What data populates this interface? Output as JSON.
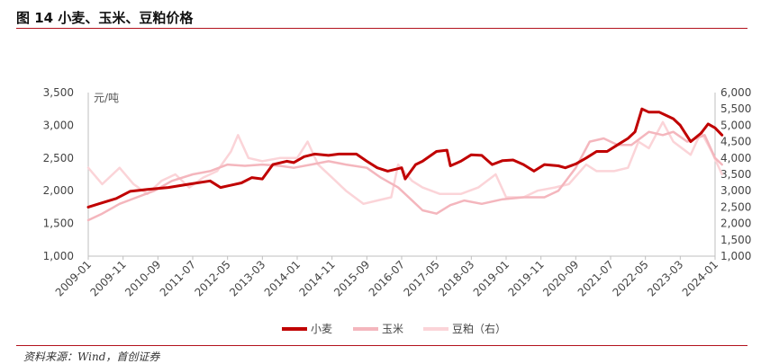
{
  "figure": {
    "title": "图 14  小麦、玉米、豆粕价格",
    "source": "资料来源：Wind，首创证券"
  },
  "chart_data": {
    "type": "line",
    "unit_label": "元/吨",
    "x_ticks": [
      "2009-01",
      "2009-11",
      "2010-09",
      "2011-07",
      "2012-05",
      "2013-03",
      "2014-01",
      "2014-11",
      "2015-09",
      "2016-07",
      "2017-05",
      "2018-03",
      "2019-01",
      "2019-11",
      "2020-09",
      "2021-07",
      "2022-05",
      "2023-03",
      "2024-01"
    ],
    "y_left": {
      "min": 1000,
      "max": 3500,
      "ticks": [
        "1,000",
        "1,500",
        "2,000",
        "2,500",
        "3,000",
        "3,500"
      ]
    },
    "y_right": {
      "min": 1000,
      "max": 6000,
      "ticks": [
        "1,000",
        "1,500",
        "2,000",
        "2,500",
        "3,000",
        "3,500",
        "4,000",
        "4,500",
        "5,000",
        "5,500",
        "6,000"
      ]
    },
    "legend_position": "bottom",
    "series": [
      {
        "name": "小麦",
        "axis": "left",
        "color": "#c00000",
        "points": [
          [
            "2009-01",
            1750
          ],
          [
            "2009-04",
            1800
          ],
          [
            "2009-09",
            1880
          ],
          [
            "2010-01",
            1990
          ],
          [
            "2010-06",
            2020
          ],
          [
            "2010-12",
            2050
          ],
          [
            "2011-06",
            2100
          ],
          [
            "2011-12",
            2150
          ],
          [
            "2012-03",
            2050
          ],
          [
            "2012-09",
            2120
          ],
          [
            "2012-12",
            2200
          ],
          [
            "2013-03",
            2180
          ],
          [
            "2013-06",
            2400
          ],
          [
            "2013-10",
            2450
          ],
          [
            "2013-12",
            2430
          ],
          [
            "2014-03",
            2520
          ],
          [
            "2014-06",
            2560
          ],
          [
            "2014-10",
            2540
          ],
          [
            "2015-01",
            2560
          ],
          [
            "2015-06",
            2560
          ],
          [
            "2015-09",
            2450
          ],
          [
            "2015-12",
            2350
          ],
          [
            "2016-03",
            2300
          ],
          [
            "2016-07",
            2350
          ],
          [
            "2016-08",
            2180
          ],
          [
            "2016-11",
            2400
          ],
          [
            "2017-01",
            2450
          ],
          [
            "2017-05",
            2600
          ],
          [
            "2017-08",
            2620
          ],
          [
            "2017-09",
            2380
          ],
          [
            "2017-12",
            2450
          ],
          [
            "2018-03",
            2550
          ],
          [
            "2018-06",
            2540
          ],
          [
            "2018-09",
            2400
          ],
          [
            "2018-12",
            2460
          ],
          [
            "2019-03",
            2470
          ],
          [
            "2019-06",
            2400
          ],
          [
            "2019-09",
            2300
          ],
          [
            "2019-12",
            2400
          ],
          [
            "2020-04",
            2380
          ],
          [
            "2020-06",
            2350
          ],
          [
            "2020-09",
            2410
          ],
          [
            "2020-12",
            2500
          ],
          [
            "2021-03",
            2600
          ],
          [
            "2021-06",
            2600
          ],
          [
            "2021-09",
            2700
          ],
          [
            "2021-12",
            2800
          ],
          [
            "2022-02",
            2900
          ],
          [
            "2022-04",
            3250
          ],
          [
            "2022-06",
            3200
          ],
          [
            "2022-09",
            3200
          ],
          [
            "2022-11",
            3150
          ],
          [
            "2023-01",
            3100
          ],
          [
            "2023-03",
            3000
          ],
          [
            "2023-06",
            2750
          ],
          [
            "2023-09",
            2880
          ],
          [
            "2023-11",
            3020
          ],
          [
            "2024-01",
            2960
          ],
          [
            "2024-03",
            2850
          ]
        ]
      },
      {
        "name": "玉米",
        "axis": "left",
        "color": "#f4b6bd",
        "points": [
          [
            "2009-01",
            1550
          ],
          [
            "2009-05",
            1650
          ],
          [
            "2009-10",
            1800
          ],
          [
            "2010-03",
            1900
          ],
          [
            "2010-08",
            2000
          ],
          [
            "2011-01",
            2150
          ],
          [
            "2011-07",
            2250
          ],
          [
            "2011-12",
            2300
          ],
          [
            "2012-05",
            2400
          ],
          [
            "2012-10",
            2380
          ],
          [
            "2013-03",
            2400
          ],
          [
            "2013-08",
            2380
          ],
          [
            "2013-12",
            2350
          ],
          [
            "2014-05",
            2400
          ],
          [
            "2014-10",
            2450
          ],
          [
            "2015-03",
            2400
          ],
          [
            "2015-09",
            2350
          ],
          [
            "2016-01",
            2200
          ],
          [
            "2016-06",
            2050
          ],
          [
            "2016-10",
            1850
          ],
          [
            "2017-01",
            1700
          ],
          [
            "2017-05",
            1650
          ],
          [
            "2017-09",
            1780
          ],
          [
            "2018-01",
            1850
          ],
          [
            "2018-06",
            1800
          ],
          [
            "2018-12",
            1870
          ],
          [
            "2019-06",
            1900
          ],
          [
            "2019-12",
            1900
          ],
          [
            "2020-04",
            2000
          ],
          [
            "2020-09",
            2350
          ],
          [
            "2021-01",
            2750
          ],
          [
            "2021-05",
            2800
          ],
          [
            "2021-09",
            2700
          ],
          [
            "2022-01",
            2700
          ],
          [
            "2022-06",
            2900
          ],
          [
            "2022-10",
            2850
          ],
          [
            "2023-01",
            2900
          ],
          [
            "2023-05",
            2750
          ],
          [
            "2023-10",
            2850
          ],
          [
            "2024-01",
            2500
          ],
          [
            "2024-03",
            2400
          ]
        ]
      },
      {
        "name": "豆粕（右）",
        "axis": "right",
        "color": "#fbd4d8",
        "points": [
          [
            "2009-01",
            3700
          ],
          [
            "2009-05",
            3200
          ],
          [
            "2009-10",
            3700
          ],
          [
            "2010-02",
            3200
          ],
          [
            "2010-06",
            2900
          ],
          [
            "2010-10",
            3300
          ],
          [
            "2011-02",
            3500
          ],
          [
            "2011-06",
            3100
          ],
          [
            "2011-10",
            3400
          ],
          [
            "2012-02",
            3600
          ],
          [
            "2012-06",
            4200
          ],
          [
            "2012-08",
            4700
          ],
          [
            "2012-11",
            4000
          ],
          [
            "2013-03",
            3900
          ],
          [
            "2013-08",
            4000
          ],
          [
            "2014-01",
            4000
          ],
          [
            "2014-04",
            4500
          ],
          [
            "2014-07",
            3800
          ],
          [
            "2014-11",
            3400
          ],
          [
            "2015-03",
            3000
          ],
          [
            "2015-08",
            2600
          ],
          [
            "2015-12",
            2700
          ],
          [
            "2016-04",
            2800
          ],
          [
            "2016-06",
            3800
          ],
          [
            "2016-10",
            3300
          ],
          [
            "2017-01",
            3100
          ],
          [
            "2017-06",
            2900
          ],
          [
            "2017-12",
            2900
          ],
          [
            "2018-05",
            3100
          ],
          [
            "2018-10",
            3500
          ],
          [
            "2019-01",
            2800
          ],
          [
            "2019-06",
            2800
          ],
          [
            "2019-10",
            3000
          ],
          [
            "2020-03",
            3100
          ],
          [
            "2020-07",
            3200
          ],
          [
            "2020-12",
            3800
          ],
          [
            "2021-03",
            3600
          ],
          [
            "2021-08",
            3600
          ],
          [
            "2021-12",
            3700
          ],
          [
            "2022-03",
            4500
          ],
          [
            "2022-06",
            4300
          ],
          [
            "2022-10",
            5100
          ],
          [
            "2023-01",
            4500
          ],
          [
            "2023-06",
            4100
          ],
          [
            "2023-09",
            4800
          ],
          [
            "2023-12",
            4200
          ],
          [
            "2024-03",
            3500
          ]
        ]
      }
    ]
  }
}
